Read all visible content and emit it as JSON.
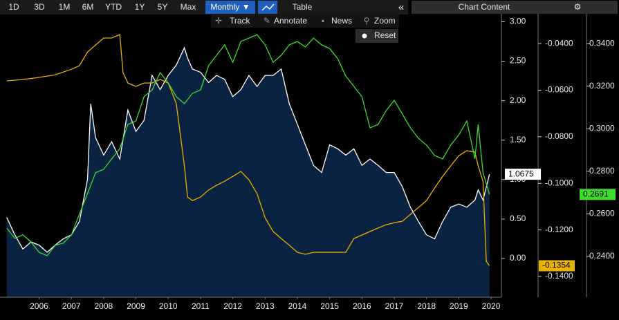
{
  "toolbar": {
    "ranges": [
      "1D",
      "3D",
      "1M",
      "6M",
      "YTD",
      "1Y",
      "5Y",
      "Max"
    ],
    "period": "Monthly ▼",
    "view": "Table",
    "collapse": "«",
    "panel": "Chart Content",
    "tools": [
      "Track",
      "Annotate",
      "News",
      "Zoom"
    ],
    "reset": "Reset"
  },
  "chart_data": {
    "type": "line",
    "xlim": [
      2005.29,
      2020.82
    ],
    "xticks": [
      {
        "value": 2006.5,
        "label": "2006"
      },
      {
        "value": 2007.5,
        "label": "2007"
      },
      {
        "value": 2008.5,
        "label": "2008"
      },
      {
        "value": 2009.5,
        "label": "2009"
      },
      {
        "value": 2010.5,
        "label": "2010"
      },
      {
        "value": 2011.5,
        "label": "2011"
      },
      {
        "value": 2012.5,
        "label": "2012"
      },
      {
        "value": 2013.5,
        "label": "2013"
      },
      {
        "value": 2014.5,
        "label": "2014"
      },
      {
        "value": 2015.5,
        "label": "2015"
      },
      {
        "value": 2016.5,
        "label": "2016"
      },
      {
        "value": 2017.5,
        "label": "2017"
      },
      {
        "value": 2018.5,
        "label": "2018"
      },
      {
        "value": 2019.5,
        "label": "2019"
      },
      {
        "value": 2020.5,
        "label": "2020"
      }
    ],
    "ylim": [
      -0.49,
      3.1
    ],
    "yticks": [
      {
        "value": 0,
        "label": "0.00"
      },
      {
        "value": 0.5,
        "label": "0.50"
      },
      {
        "value": 1,
        "label": "1.00"
      },
      {
        "value": 1.5,
        "label": "1.50"
      },
      {
        "value": 2,
        "label": "2.00"
      },
      {
        "value": 2.5,
        "label": "2.50"
      },
      {
        "value": 3,
        "label": "3.00"
      }
    ],
    "y2lim": [
      -0.1489,
      -0.0272
    ],
    "y2ticks": [
      {
        "value": -0.04,
        "label": "-0.0400"
      },
      {
        "value": -0.06,
        "label": "-0.0600"
      },
      {
        "value": -0.08,
        "label": "-0.0800"
      },
      {
        "value": -0.1,
        "label": "-0.1000"
      },
      {
        "value": -0.12,
        "label": "-0.1200"
      },
      {
        "value": -0.14,
        "label": "-0.1400"
      }
    ],
    "y3lim": [
      0.2208,
      0.354
    ],
    "y3ticks": [
      {
        "value": 0.24,
        "label": "0.2400"
      },
      {
        "value": 0.26,
        "label": "0.2600"
      },
      {
        "value": 0.28,
        "label": "0.2800"
      },
      {
        "value": 0.3,
        "label": "0.3000"
      },
      {
        "value": 0.32,
        "label": "0.3200"
      },
      {
        "value": 0.34,
        "label": "0.3400"
      }
    ],
    "series": [
      {
        "color": "#ffffff",
        "fill": "#0b2343",
        "axis": "y",
        "last_value": 1.0675,
        "x": [
          2005.5,
          2005.75,
          2006,
          2006.25,
          2006.5,
          2006.75,
          2007,
          2007.25,
          2007.5,
          2007.75,
          2008,
          2008.1,
          2008.25,
          2008.5,
          2008.75,
          2009,
          2009.25,
          2009.5,
          2009.75,
          2010,
          2010.25,
          2010.5,
          2010.75,
          2011,
          2011.1,
          2011.25,
          2011.5,
          2011.75,
          2012,
          2012.25,
          2012.5,
          2012.75,
          2013,
          2013.25,
          2013.5,
          2013.75,
          2014,
          2014.25,
          2014.5,
          2014.75,
          2015,
          2015.25,
          2015.5,
          2015.75,
          2016,
          2016.25,
          2016.5,
          2016.75,
          2017,
          2017.25,
          2017.5,
          2017.75,
          2018,
          2018.25,
          2018.5,
          2018.75,
          2019,
          2019.25,
          2019.5,
          2019.75,
          2020,
          2020.1,
          2020.25,
          2020.45
        ],
        "values": [
          0.52,
          0.3,
          0.12,
          0.21,
          0.17,
          0.08,
          0.17,
          0.25,
          0.3,
          0.47,
          1.0,
          1.96,
          1.53,
          1.31,
          1.48,
          1.26,
          1.88,
          1.61,
          1.75,
          2.32,
          2.14,
          2.32,
          2.45,
          2.67,
          2.54,
          2.4,
          2.36,
          2.23,
          2.32,
          2.27,
          2.05,
          2.14,
          2.32,
          2.18,
          2.32,
          2.32,
          2.4,
          1.96,
          1.7,
          1.44,
          1.18,
          1.09,
          1.44,
          1.39,
          1.31,
          1.39,
          1.18,
          1.26,
          1.18,
          1.09,
          1.09,
          0.91,
          0.65,
          0.47,
          0.3,
          0.25,
          0.47,
          0.65,
          0.69,
          0.65,
          0.74,
          0.87,
          0.74,
          1.0675
        ]
      },
      {
        "color": "#e8b400",
        "axis": "y2",
        "last_value": -0.1354,
        "x": [
          2005.5,
          2006,
          2006.5,
          2007,
          2007.5,
          2007.75,
          2008,
          2008.25,
          2008.5,
          2008.75,
          2009,
          2009.1,
          2009.25,
          2009.5,
          2009.75,
          2010,
          2010.25,
          2010.5,
          2010.75,
          2011,
          2011.1,
          2011.25,
          2011.5,
          2011.75,
          2012,
          2012.25,
          2012.5,
          2012.75,
          2013,
          2013.25,
          2013.5,
          2013.75,
          2014,
          2014.25,
          2014.5,
          2014.75,
          2015,
          2015.5,
          2016,
          2016.25,
          2016.5,
          2016.75,
          2017,
          2017.25,
          2017.5,
          2017.75,
          2018,
          2018.25,
          2018.5,
          2018.75,
          2019,
          2019.25,
          2019.5,
          2019.75,
          2020,
          2020.1,
          2020.25,
          2020.35,
          2020.45
        ],
        "values": [
          -0.056,
          -0.0554,
          -0.0545,
          -0.0534,
          -0.051,
          -0.0495,
          -0.0436,
          -0.0406,
          -0.0376,
          -0.0376,
          -0.0361,
          -0.0525,
          -0.0569,
          -0.0584,
          -0.0569,
          -0.0569,
          -0.0554,
          -0.0569,
          -0.0658,
          -0.0925,
          -0.1059,
          -0.1074,
          -0.1059,
          -0.1029,
          -0.1008,
          -0.0991,
          -0.097,
          -0.0949,
          -0.0985,
          -0.1044,
          -0.1148,
          -0.1207,
          -0.1237,
          -0.1266,
          -0.1296,
          -0.1305,
          -0.1296,
          -0.1296,
          -0.1296,
          -0.1237,
          -0.1222,
          -0.1207,
          -0.1192,
          -0.1178,
          -0.1169,
          -0.1163,
          -0.1133,
          -0.1104,
          -0.1074,
          -0.102,
          -0.097,
          -0.0925,
          -0.0881,
          -0.086,
          -0.0866,
          -0.0925,
          -0.0991,
          -0.1335,
          -0.1354
        ]
      },
      {
        "color": "#3ddc2c",
        "axis": "y3",
        "last_value": 0.2691,
        "x": [
          2005.5,
          2005.75,
          2006,
          2006.25,
          2006.5,
          2006.75,
          2007,
          2007.25,
          2007.5,
          2007.75,
          2008,
          2008.25,
          2008.5,
          2008.75,
          2009,
          2009.25,
          2009.5,
          2009.75,
          2010,
          2010.25,
          2010.5,
          2010.75,
          2011,
          2011.25,
          2011.5,
          2011.75,
          2012,
          2012.25,
          2012.5,
          2012.75,
          2013,
          2013.25,
          2013.5,
          2013.75,
          2014,
          2014.25,
          2014.5,
          2014.75,
          2015,
          2015.25,
          2015.5,
          2015.75,
          2016,
          2016.25,
          2016.5,
          2016.75,
          2017,
          2017.25,
          2017.5,
          2017.75,
          2018,
          2018.25,
          2018.5,
          2018.75,
          2019,
          2019.25,
          2019.5,
          2019.75,
          2020,
          2020.1,
          2020.25,
          2020.45
        ],
        "values": [
          0.2533,
          0.2484,
          0.2501,
          0.2468,
          0.2419,
          0.2403,
          0.2452,
          0.2462,
          0.2501,
          0.2598,
          0.2695,
          0.2793,
          0.2809,
          0.2858,
          0.2906,
          0.302,
          0.3036,
          0.315,
          0.3182,
          0.3264,
          0.3215,
          0.315,
          0.3118,
          0.3166,
          0.3182,
          0.3296,
          0.3345,
          0.3394,
          0.3312,
          0.341,
          0.3426,
          0.3442,
          0.3394,
          0.3312,
          0.3345,
          0.3394,
          0.341,
          0.3384,
          0.3426,
          0.3394,
          0.3377,
          0.3329,
          0.3247,
          0.3199,
          0.315,
          0.3004,
          0.302,
          0.3085,
          0.3134,
          0.3069,
          0.3004,
          0.2955,
          0.2923,
          0.2874,
          0.2858,
          0.2923,
          0.2971,
          0.3036,
          0.2858,
          0.302,
          0.2793,
          0.2691
        ]
      }
    ]
  }
}
